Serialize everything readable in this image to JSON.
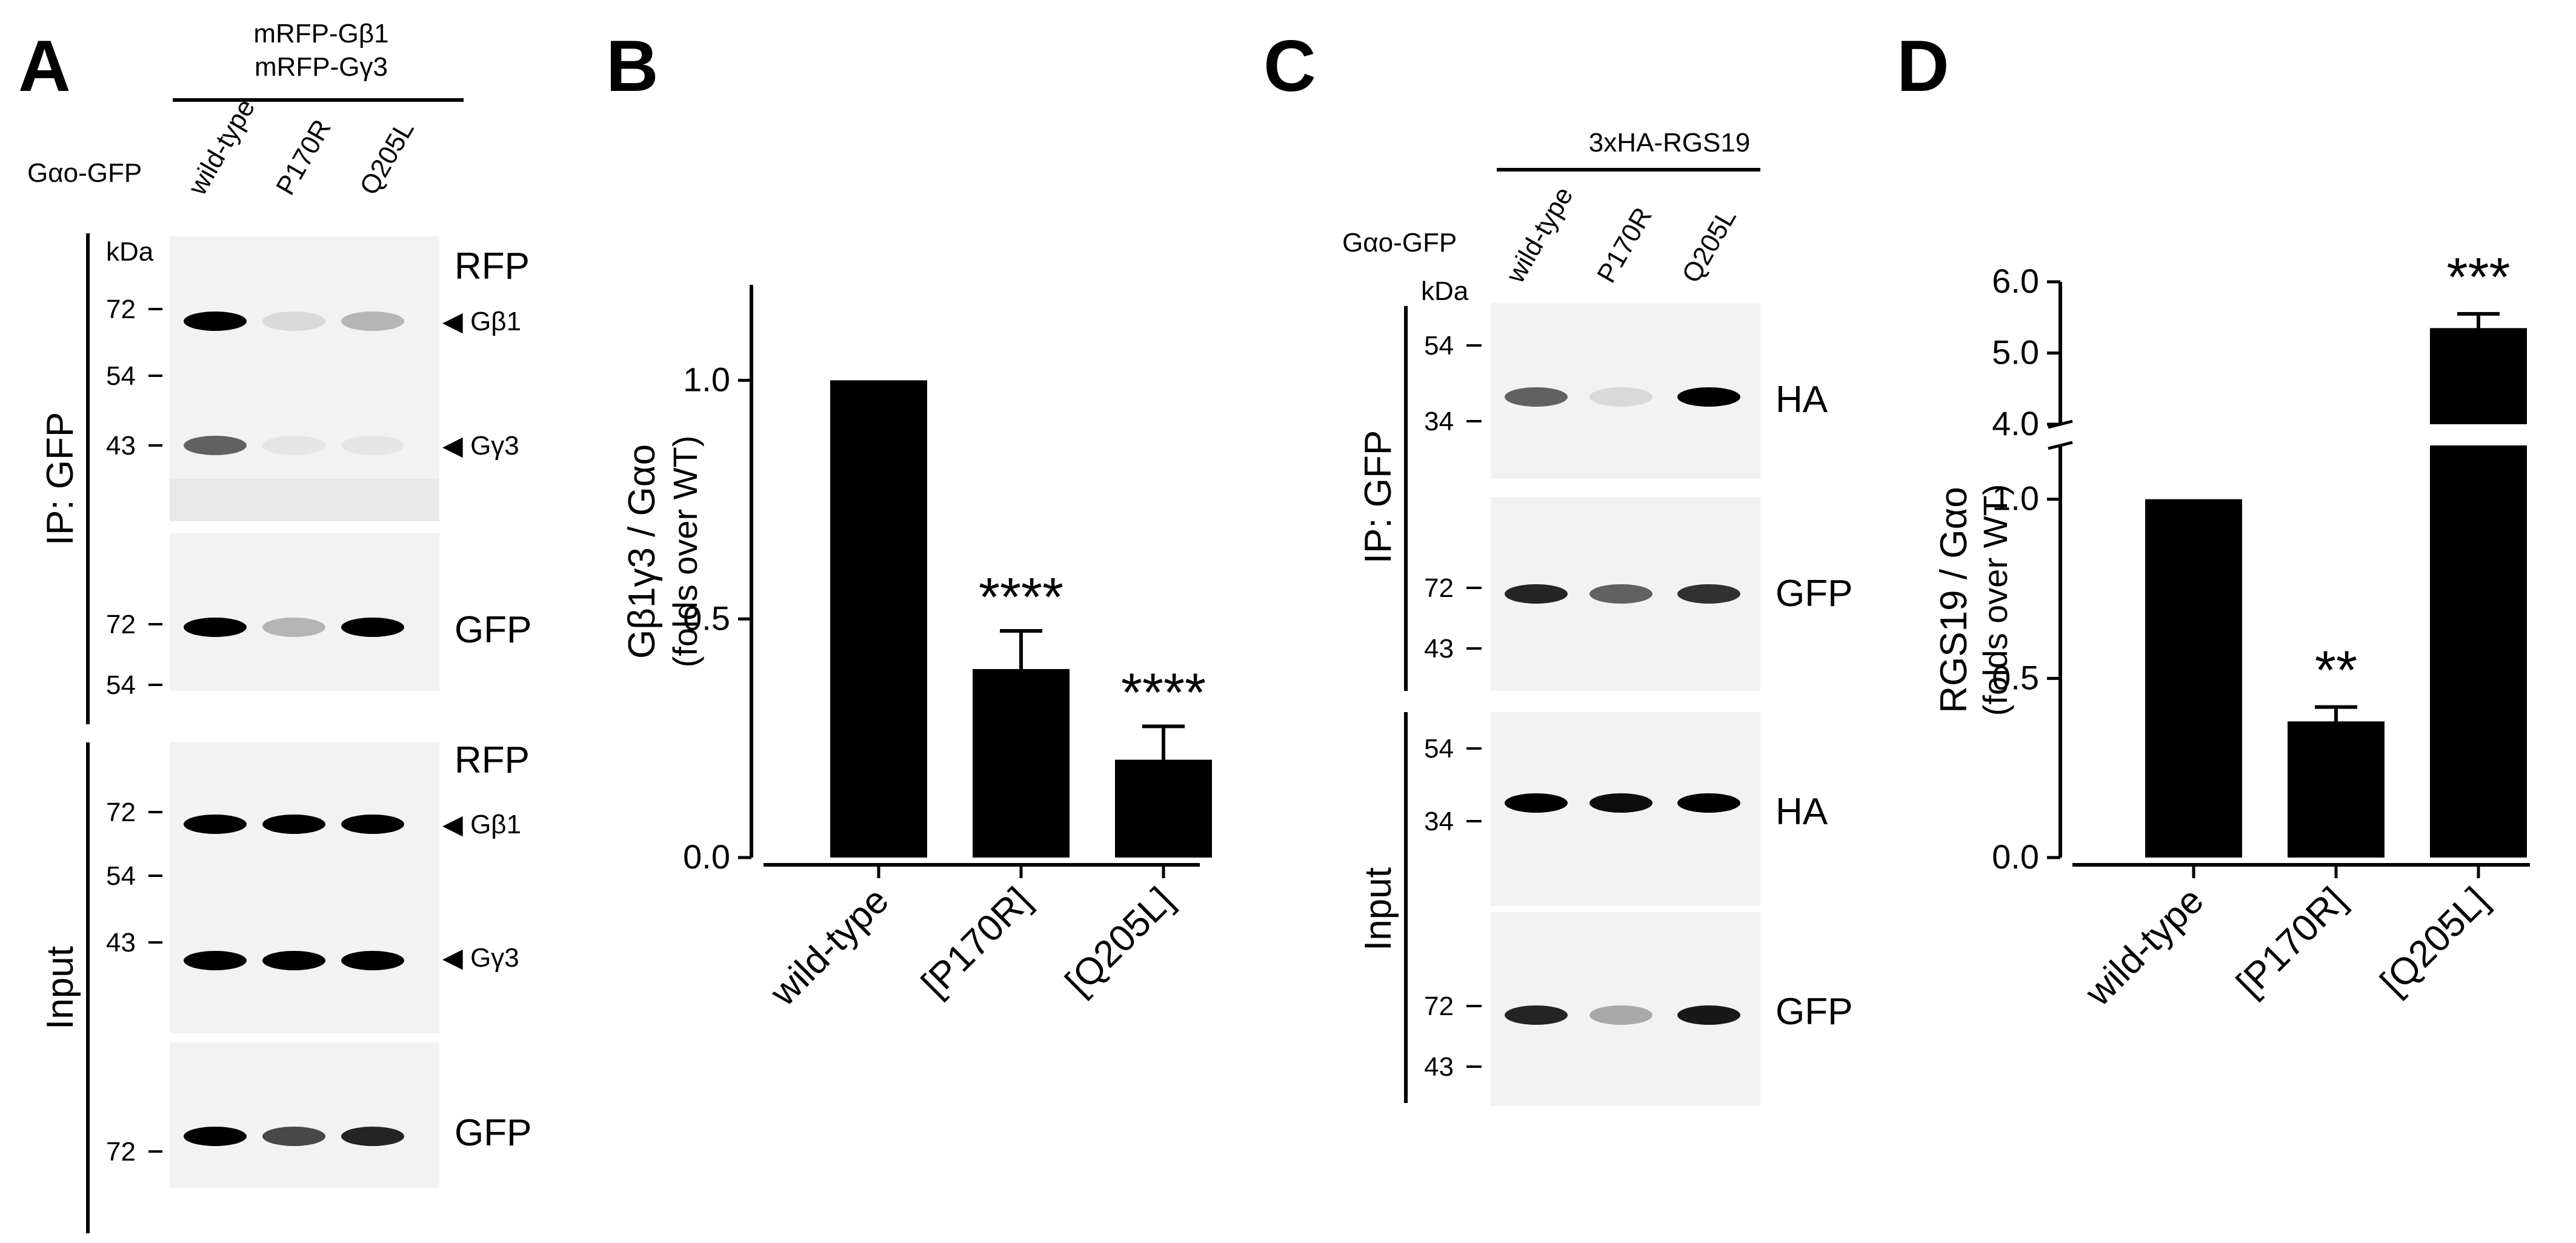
{
  "panels": {
    "A": {
      "letter": "A",
      "construct": [
        "mRFP-Gβ1",
        "mRFP-Gγ3"
      ],
      "row_label": "Gαo-GFP",
      "lanes": [
        "wild-type",
        "P170R",
        "Q205L"
      ],
      "kda": "kDa",
      "sections": [
        "IP: GFP",
        "Input"
      ],
      "blots": [
        {
          "name": "RFP",
          "markers": [
            "72",
            "54",
            "43"
          ],
          "arrows": [
            "◀ Gβ1",
            "◀ Gγ3"
          ],
          "intensity": [
            1.0,
            0.1,
            0.25
          ],
          "intensity2": [
            0.6,
            0.05,
            0.05
          ]
        },
        {
          "name": "GFP",
          "markers": [
            "72",
            "54"
          ],
          "intensity": [
            1.0,
            0.25,
            1.0
          ]
        },
        {
          "name": "RFP",
          "markers": [
            "72",
            "54",
            "43"
          ],
          "arrows": [
            "◀ Gβ1",
            "◀ Gγ3"
          ],
          "intensity": [
            1.0,
            1.0,
            1.0
          ],
          "intensity2": [
            1.0,
            1.0,
            1.0
          ]
        },
        {
          "name": "GFP",
          "markers": [
            "72"
          ],
          "intensity": [
            1.0,
            0.7,
            0.85
          ]
        }
      ]
    },
    "C": {
      "letter": "C",
      "construct": [
        "3xHA-RGS19"
      ],
      "row_label": "Gαo-GFP",
      "lanes": [
        "wild-type",
        "P170R",
        "Q205L"
      ],
      "kda": "kDa",
      "sections": [
        "IP: GFP",
        "Input"
      ],
      "blots": [
        {
          "name": "HA",
          "markers": [
            "54",
            "34"
          ],
          "intensity": [
            0.6,
            0.1,
            1.0
          ]
        },
        {
          "name": "GFP",
          "markers": [
            "72",
            "43"
          ],
          "intensity": [
            0.85,
            0.6,
            0.8
          ]
        },
        {
          "name": "HA",
          "markers": [
            "54",
            "34"
          ],
          "intensity": [
            1.0,
            0.95,
            1.0
          ]
        },
        {
          "name": "GFP",
          "markers": [
            "72",
            "43"
          ],
          "intensity": [
            0.85,
            0.3,
            0.9
          ]
        }
      ]
    }
  },
  "chart_data": [
    {
      "panel": "B",
      "type": "bar",
      "categories": [
        "wild-type",
        "[P170R]",
        "[Q205L]"
      ],
      "values": [
        1.0,
        0.395,
        0.205
      ],
      "errors": [
        0,
        0.08,
        0.07
      ],
      "significance": [
        "",
        "****",
        "****"
      ],
      "ylabel": "Gβ1γ3 / Gαo",
      "ylabel2": "(folds over WT)",
      "ylim": [
        0,
        1.2
      ],
      "yticks": [
        "0.0",
        "0.5",
        "1.0"
      ],
      "bar_color": "#000000"
    },
    {
      "panel": "D",
      "type": "bar",
      "categories": [
        "wild-type",
        "[P170R]",
        "[Q205L]"
      ],
      "values": [
        1.0,
        0.38,
        5.35
      ],
      "errors": [
        0,
        0.04,
        0.2
      ],
      "significance": [
        "",
        "**",
        "***"
      ],
      "ylabel": "RGS19 / Gαo",
      "ylabel2": "(folds over WT)",
      "axis_break": {
        "lower": [
          0,
          1.15
        ],
        "upper": [
          4.0,
          6.0
        ]
      },
      "yticks_lower": [
        "0.0",
        "0.5",
        "1.0"
      ],
      "yticks_upper": [
        "4.0",
        "5.0",
        "6.0"
      ],
      "bar_color": "#000000"
    }
  ]
}
